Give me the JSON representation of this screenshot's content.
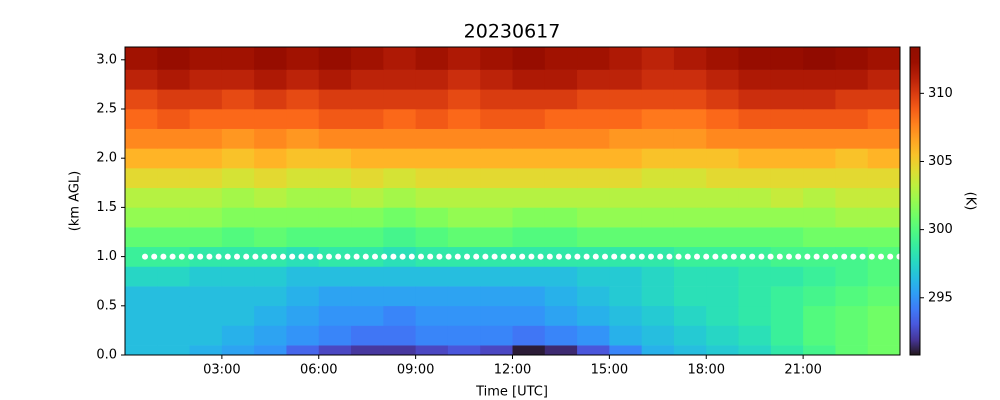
{
  "chart_data": {
    "type": "heatmap",
    "title": "20230617",
    "xlabel": "Time [UTC]",
    "ylabel": "(km AGL)",
    "colorbar_label": "(K)",
    "colormap": "turbo",
    "x_edges": [
      0,
      1,
      2,
      3,
      4,
      5,
      6,
      7,
      8,
      9,
      10,
      11,
      12,
      13,
      14,
      15,
      16,
      17,
      18,
      19,
      20,
      21,
      22,
      23,
      24
    ],
    "y_edges": [
      0,
      0.1,
      0.3,
      0.5,
      0.7,
      0.9,
      1.1,
      1.3,
      1.5,
      1.7,
      1.9,
      2.1,
      2.3,
      2.5,
      2.7,
      2.9,
      3.13
    ],
    "z": [
      [
        296.5,
        296.5,
        296,
        295.5,
        295,
        293.5,
        292.5,
        292,
        292,
        292.5,
        293,
        292.5,
        291,
        291.5,
        293,
        294.5,
        296,
        296.5,
        297,
        297.5,
        298.5,
        299.5,
        300.5,
        301
      ],
      [
        296.5,
        296.5,
        296.5,
        296,
        295.5,
        295,
        294.5,
        294,
        294,
        294.5,
        294.5,
        294.5,
        294,
        294.5,
        295,
        296,
        296.5,
        297,
        297.5,
        298,
        299,
        300,
        300.5,
        301
      ],
      [
        296.5,
        296.5,
        296.5,
        296.5,
        296,
        295.5,
        295,
        295,
        294.5,
        295,
        295,
        295,
        295,
        295.5,
        296,
        296.5,
        297,
        297.5,
        298,
        298.5,
        299,
        300,
        300.5,
        301
      ],
      [
        296.5,
        296.5,
        296.5,
        296.5,
        296.5,
        296,
        295.5,
        295.5,
        295.5,
        295.5,
        295.5,
        295.5,
        295.5,
        296,
        296.5,
        297,
        297.5,
        298,
        298,
        298.5,
        299,
        299.5,
        300,
        300.5
      ],
      [
        297.5,
        297.5,
        297,
        297,
        297,
        296.5,
        296.5,
        296.5,
        296.5,
        296.5,
        296.5,
        296.5,
        296.5,
        296.5,
        297,
        297,
        297.5,
        298,
        298,
        298.5,
        298.5,
        299,
        299.5,
        300
      ],
      [
        299,
        299,
        298.5,
        298.5,
        298.5,
        298,
        298.5,
        298.5,
        298,
        298.5,
        298.5,
        298.5,
        298.5,
        298.5,
        298.5,
        298.5,
        298.5,
        299,
        299,
        299,
        299.5,
        299.5,
        299.5,
        300
      ],
      [
        300.5,
        300.5,
        300.5,
        300,
        300.5,
        300,
        300,
        300,
        299.5,
        300,
        300.5,
        300.5,
        300,
        300,
        300.5,
        300.5,
        300.5,
        300.5,
        300.5,
        300.5,
        300.5,
        301,
        301,
        301
      ],
      [
        302,
        302,
        302,
        301.5,
        301.5,
        301.5,
        301.5,
        301.5,
        301,
        301.5,
        302,
        302,
        301.5,
        301.5,
        302,
        302,
        302,
        302,
        302,
        302,
        302,
        302,
        302.5,
        302.5
      ],
      [
        303,
        303,
        303,
        302.5,
        303,
        302.5,
        302.5,
        303,
        302.5,
        303,
        303,
        303,
        303,
        303,
        303,
        303,
        303,
        303,
        303,
        303,
        303.5,
        303,
        303.5,
        303.5
      ],
      [
        304.5,
        304.5,
        304.5,
        304,
        304.5,
        304,
        304,
        304.5,
        304,
        304.5,
        304.5,
        304.5,
        304.5,
        304.5,
        304.5,
        304.5,
        304,
        304,
        304.5,
        304.5,
        304.5,
        304.5,
        304.5,
        304.5
      ],
      [
        306,
        306,
        306,
        305.5,
        306,
        305.5,
        305.5,
        306,
        306,
        306,
        306,
        306,
        306,
        306,
        306,
        306,
        305.5,
        305.5,
        305.5,
        306,
        306,
        306,
        305.5,
        306
      ],
      [
        307.5,
        307.5,
        307.5,
        307,
        307.5,
        307,
        307.5,
        307.5,
        307.5,
        307.5,
        307.5,
        307.5,
        307.5,
        307.5,
        307.5,
        307,
        307,
        307,
        307.5,
        307.5,
        307.5,
        307.5,
        307.5,
        307.5
      ],
      [
        308.5,
        309,
        308.5,
        308.5,
        308.5,
        308.5,
        309,
        309,
        308.5,
        309,
        308.5,
        309,
        309,
        308.5,
        308.5,
        308.5,
        308,
        308,
        308.5,
        309,
        309,
        309,
        309,
        308.5
      ],
      [
        309.5,
        310,
        310,
        309.5,
        310,
        309.5,
        310,
        310,
        310,
        310,
        309.5,
        310,
        310,
        310,
        309.5,
        309.5,
        309.5,
        309.5,
        310,
        310.5,
        310.5,
        310.5,
        310,
        310
      ],
      [
        311,
        311.5,
        311,
        311,
        311.5,
        311,
        311.5,
        311,
        311,
        311,
        310.5,
        311,
        311.5,
        311.5,
        311,
        311,
        310.5,
        310.5,
        311,
        311.5,
        311.5,
        311.5,
        311.5,
        311
      ],
      [
        312,
        312.5,
        312,
        312,
        312.5,
        312,
        312.5,
        312,
        311.5,
        312,
        311.5,
        312,
        312.5,
        312,
        312,
        311.5,
        311,
        311.5,
        312,
        312.5,
        312.5,
        313,
        312.5,
        312
      ]
    ],
    "reference_line": {
      "y": 1.0,
      "color": "#ffffff"
    },
    "xlim": [
      0,
      24
    ],
    "ylim": [
      0,
      3.13
    ],
    "clim": [
      290.8,
      313.4
    ],
    "xticks": [
      {
        "value": 3,
        "label": "03:00"
      },
      {
        "value": 6,
        "label": "06:00"
      },
      {
        "value": 9,
        "label": "09:00"
      },
      {
        "value": 12,
        "label": "12:00"
      },
      {
        "value": 15,
        "label": "15:00"
      },
      {
        "value": 18,
        "label": "18:00"
      },
      {
        "value": 21,
        "label": "21:00"
      }
    ],
    "yticks": [
      {
        "value": 0,
        "label": "0.0"
      },
      {
        "value": 0.5,
        "label": "0.5"
      },
      {
        "value": 1,
        "label": "1.0"
      },
      {
        "value": 1.5,
        "label": "1.5"
      },
      {
        "value": 2,
        "label": "2.0"
      },
      {
        "value": 2.5,
        "label": "2.5"
      },
      {
        "value": 3,
        "label": "3.0"
      }
    ],
    "cticks": [
      295,
      300,
      305,
      310
    ]
  }
}
